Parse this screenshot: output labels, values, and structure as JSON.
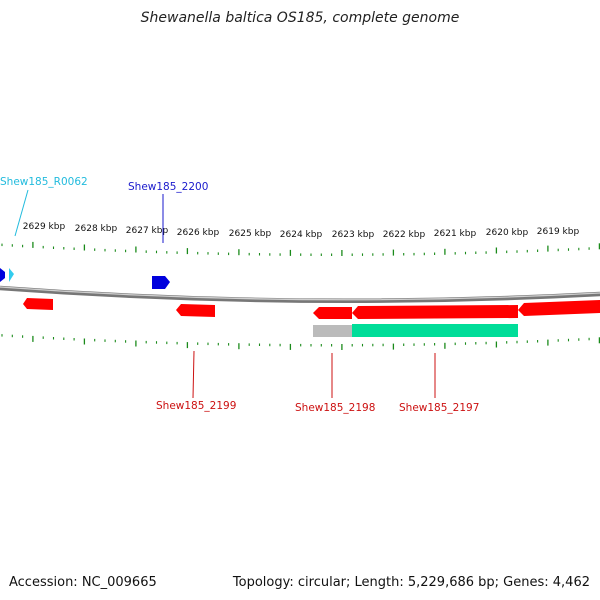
{
  "title": "Shewanella baltica OS185, complete genome",
  "footer": {
    "accession": "Accession: NC_009665",
    "summary": "Topology: circular; Length: 5,229,686 bp; Genes: 4,462"
  },
  "colors": {
    "gene_forward": "#0000dd",
    "gene_reverse": "#ff0000",
    "rna": "#33ccee",
    "cds": "#00dd99",
    "cds_gap": "#bbbbbb",
    "ticks": "#1a8a1a",
    "backbone": "#888888",
    "callout_blue": "#1a1acc",
    "callout_red": "#cc1111",
    "callout_cyan": "#22bbdd"
  },
  "scale": {
    "unit": "kbp",
    "labels": [
      "2629 kbp",
      "2628 kbp",
      "2627 kbp",
      "2626 kbp",
      "2625 kbp",
      "2624 kbp",
      "2623 kbp",
      "2622 kbp",
      "2621 kbp",
      "2620 kbp",
      "2619 kbp"
    ]
  },
  "gene_labels": [
    {
      "id": "Shew185_R0062",
      "color_key": "callout_cyan"
    },
    {
      "id": "Shew185_2200",
      "color_key": "callout_blue"
    },
    {
      "id": "Shew185_2199",
      "color_key": "callout_red"
    },
    {
      "id": "Shew185_2198",
      "color_key": "callout_red"
    },
    {
      "id": "Shew185_2197",
      "color_key": "callout_red"
    }
  ]
}
